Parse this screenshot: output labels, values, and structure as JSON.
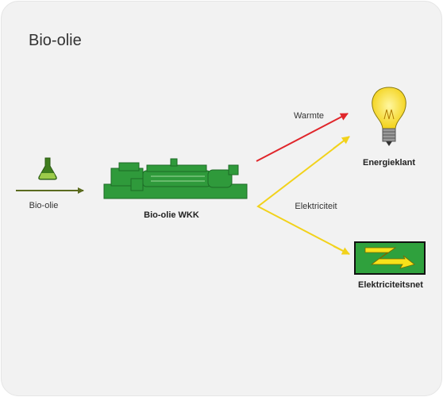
{
  "title": "Bio-olie",
  "input": {
    "label": "Bio-olie"
  },
  "machine": {
    "label": "Bio-olie WKK"
  },
  "flows": [
    {
      "label": "Warmte"
    },
    {
      "label": "Elektriciteit"
    }
  ],
  "nodes": [
    {
      "label": "Energieklant"
    },
    {
      "label": "Elektriciteitsnet"
    }
  ]
}
